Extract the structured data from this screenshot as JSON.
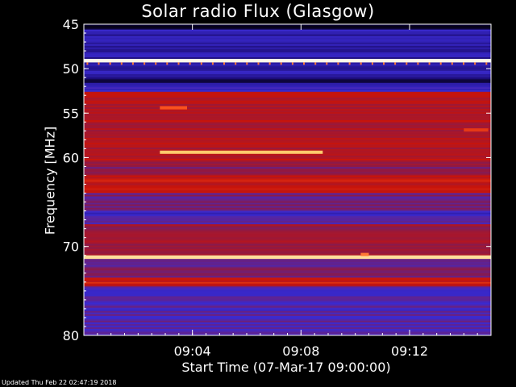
{
  "chart_data": {
    "type": "heatmap",
    "title": "Solar radio Flux (Glasgow)",
    "ylabel": "Frequency [MHz]",
    "xlabel": "Start Time (07-Mar-17 09:00:00)",
    "x_unit": "minutes after 09:00:00",
    "xlim": [
      0,
      15
    ],
    "ylim": [
      45,
      80
    ],
    "y_inverted": true,
    "x_ticks": [
      {
        "value": 4,
        "label": "09:04"
      },
      {
        "value": 8,
        "label": "09:08"
      },
      {
        "value": 12,
        "label": "09:12"
      }
    ],
    "y_ticks": [
      {
        "value": 45,
        "label": "45"
      },
      {
        "value": 50,
        "label": "50"
      },
      {
        "value": 55,
        "label": "55"
      },
      {
        "value": 60,
        "label": "60"
      },
      {
        "value": 70,
        "label": "70"
      },
      {
        "value": 80,
        "label": "80"
      }
    ],
    "colormap": [
      "#000000",
      "#1a0a6e",
      "#3a2ad0",
      "#8a1a4a",
      "#c8140a",
      "#ff5a20",
      "#ffd070",
      "#ffffff"
    ],
    "bands": [
      {
        "from": 45.0,
        "to": 45.6,
        "level": 0.05
      },
      {
        "from": 45.6,
        "to": 48.9,
        "level": 0.22
      },
      {
        "from": 48.9,
        "to": 49.3,
        "level": 0.98
      },
      {
        "from": 49.3,
        "to": 51.0,
        "level": 0.22
      },
      {
        "from": 51.0,
        "to": 51.6,
        "level": 0.12
      },
      {
        "from": 51.6,
        "to": 52.6,
        "level": 0.25
      },
      {
        "from": 52.6,
        "to": 52.9,
        "level": 0.58
      },
      {
        "from": 52.9,
        "to": 60.5,
        "level": 0.52
      },
      {
        "from": 60.5,
        "to": 62.0,
        "level": 0.43
      },
      {
        "from": 62.0,
        "to": 64.0,
        "level": 0.55
      },
      {
        "from": 64.0,
        "to": 66.0,
        "level": 0.38
      },
      {
        "from": 66.0,
        "to": 67.5,
        "level": 0.3
      },
      {
        "from": 67.5,
        "to": 71.0,
        "level": 0.47
      },
      {
        "from": 71.0,
        "to": 71.4,
        "level": 0.9
      },
      {
        "from": 71.4,
        "to": 73.5,
        "level": 0.38
      },
      {
        "from": 73.5,
        "to": 74.5,
        "level": 0.58
      },
      {
        "from": 74.5,
        "to": 80.0,
        "level": 0.32
      }
    ],
    "events": [
      {
        "t_start": 2.8,
        "t_end": 8.8,
        "freq": 59.4,
        "level": 0.85
      },
      {
        "t_start": 2.8,
        "t_end": 3.8,
        "freq": 54.4,
        "level": 0.7
      },
      {
        "t_start": 10.2,
        "t_end": 10.5,
        "freq": 70.9,
        "level": 0.75
      },
      {
        "t_start": 14.0,
        "t_end": 14.9,
        "freq": 56.9,
        "level": 0.65
      }
    ]
  },
  "footer": {
    "updated": "Updated Thu Feb 22 02:47:19 2018"
  }
}
